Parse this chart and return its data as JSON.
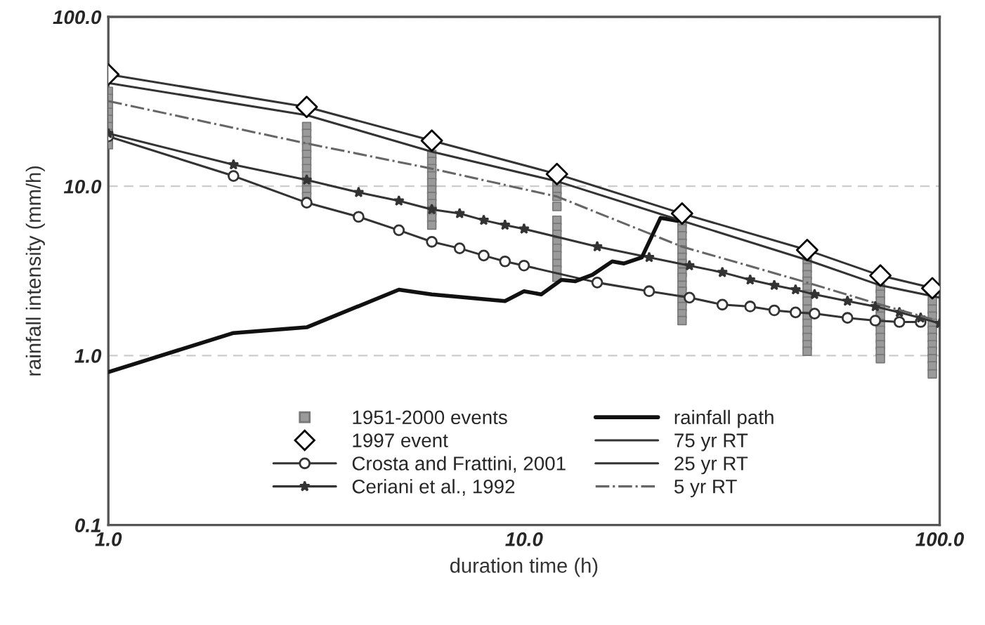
{
  "chart_data": {
    "type": "line",
    "xlabel": "duration time (h)",
    "ylabel": "rainfall intensity (mm/h)",
    "log": "xy",
    "xlim": [
      1,
      100
    ],
    "xticks": [
      {
        "value": 1,
        "label": "1.0"
      },
      {
        "value": 10,
        "label": "10.0"
      },
      {
        "value": 100,
        "label": "100.0"
      }
    ],
    "ylim": [
      0.1,
      100
    ],
    "yticks": [
      {
        "value": 0.1,
        "label": "0.1"
      },
      {
        "value": 1,
        "label": "1.0"
      },
      {
        "value": 10,
        "label": "10.0"
      },
      {
        "value": 100,
        "label": "100.0"
      }
    ],
    "grid": "y",
    "legend": "bottom",
    "series": [
      {
        "name": "1951-2000 events",
        "type": "scatter",
        "marker": "square",
        "color": "#9a9a9a",
        "x": [
          1,
          1,
          1,
          1,
          1,
          1,
          1,
          1,
          1,
          3,
          3,
          3,
          3,
          3,
          3,
          3,
          3,
          3,
          3,
          3,
          6,
          6,
          6,
          6,
          6,
          6,
          6,
          6,
          6,
          6,
          6,
          12,
          12,
          12,
          12,
          12,
          12,
          12,
          12,
          12,
          12,
          12,
          12,
          12,
          24,
          24,
          24,
          24,
          24,
          24,
          24,
          24,
          24,
          24,
          24,
          24,
          24,
          24,
          24,
          48,
          48,
          48,
          48,
          48,
          48,
          48,
          48,
          48,
          48,
          48,
          48,
          48,
          48,
          72,
          72,
          72,
          72,
          72,
          72,
          72,
          72,
          72,
          72,
          72,
          96,
          96,
          96,
          96,
          96,
          96,
          96,
          96,
          96,
          96,
          96
        ],
        "values": [
          36.3,
          33.0,
          30.0,
          27.3,
          24.8,
          22.5,
          20.5,
          18.6,
          17.6,
          22.5,
          20.5,
          18.6,
          16.9,
          15.4,
          14.0,
          12.7,
          11.5,
          10.5,
          9.5,
          8.7,
          15.4,
          14.0,
          12.7,
          11.5,
          10.5,
          9.5,
          8.7,
          7.9,
          7.2,
          6.5,
          5.9,
          10.5,
          9.5,
          8.7,
          7.6,
          6.3,
          5.7,
          5.2,
          4.7,
          4.3,
          3.9,
          3.5,
          3.2,
          2.9,
          6.1,
          5.6,
          5.1,
          4.6,
          4.2,
          3.8,
          3.5,
          3.1,
          2.9,
          2.6,
          2.4,
          2.1,
          1.95,
          1.77,
          1.61,
          3.7,
          3.3,
          3.0,
          2.75,
          2.5,
          2.3,
          2.1,
          1.88,
          1.71,
          1.55,
          1.41,
          1.28,
          1.16,
          1.06,
          2.5,
          2.3,
          2.1,
          1.88,
          1.71,
          1.55,
          1.41,
          1.28,
          1.16,
          1.06,
          0.96,
          2.1,
          1.88,
          1.71,
          1.55,
          1.41,
          1.28,
          1.16,
          1.06,
          0.96,
          0.87,
          0.78
        ]
      },
      {
        "name": "1997 event",
        "type": "scatter",
        "marker": "diamond",
        "color": "#000000",
        "x": [
          1,
          3,
          6,
          12,
          24,
          48,
          72,
          96
        ],
        "values": [
          45.7,
          29.4,
          18.6,
          11.8,
          6.9,
          4.2,
          2.97,
          2.5
        ]
      },
      {
        "name": "Crosta and Frattini, 2001",
        "marker": "circle",
        "color": "#333333",
        "x": [
          1,
          2,
          3,
          4,
          5,
          6,
          7,
          8,
          9,
          10,
          15,
          20,
          25,
          30,
          35,
          40,
          45,
          50,
          60,
          70,
          80,
          90
        ],
        "values": [
          19.7,
          11.5,
          8.0,
          6.6,
          5.5,
          4.7,
          4.3,
          3.9,
          3.6,
          3.4,
          2.7,
          2.4,
          2.2,
          2.0,
          1.95,
          1.85,
          1.8,
          1.77,
          1.67,
          1.61,
          1.58,
          1.58
        ]
      },
      {
        "name": "Ceriani et al., 1992",
        "marker": "star",
        "color": "#333333",
        "x": [
          1,
          2,
          3,
          4,
          5,
          6,
          7,
          8,
          9,
          10,
          15,
          20,
          25,
          30,
          35,
          40,
          45,
          50,
          60,
          70,
          80,
          90,
          100
        ],
        "values": [
          20.5,
          13.4,
          10.9,
          9.2,
          8.2,
          7.3,
          6.9,
          6.3,
          5.9,
          5.6,
          4.4,
          3.8,
          3.4,
          3.1,
          2.8,
          2.6,
          2.45,
          2.3,
          2.1,
          1.95,
          1.8,
          1.67,
          1.55
        ]
      },
      {
        "name": "rainfall path",
        "color": "#111111",
        "x": [
          1,
          2,
          3,
          5,
          6,
          9,
          10,
          11,
          12.3,
          13.3,
          14.6,
          16.3,
          17.4,
          19.2,
          21.3,
          23.4
        ],
        "values": [
          0.8,
          1.36,
          1.47,
          2.45,
          2.3,
          2.1,
          2.4,
          2.3,
          2.8,
          2.75,
          3.0,
          3.6,
          3.5,
          3.8,
          6.5,
          6.25
        ]
      },
      {
        "name": "75 yr RT",
        "color": "#333333",
        "x": [
          1,
          3,
          6,
          12,
          24,
          48,
          72,
          100
        ],
        "values": [
          45.7,
          29.4,
          18.6,
          11.8,
          6.9,
          4.2,
          2.97,
          2.45
        ]
      },
      {
        "name": "25 yr RT",
        "color": "#333333",
        "x": [
          1,
          3,
          6,
          12,
          24,
          48,
          72,
          100
        ],
        "values": [
          40.7,
          26.3,
          16.0,
          10.7,
          6.25,
          3.67,
          2.6,
          2.2
        ]
      },
      {
        "name": "5 yr RT",
        "line_style": "dashdot",
        "color": "#666666",
        "x": [
          1,
          3,
          6,
          12,
          24,
          48,
          72,
          96
        ],
        "values": [
          31.8,
          17.9,
          12.7,
          8.7,
          4.4,
          2.7,
          2.0,
          1.64
        ]
      }
    ]
  }
}
